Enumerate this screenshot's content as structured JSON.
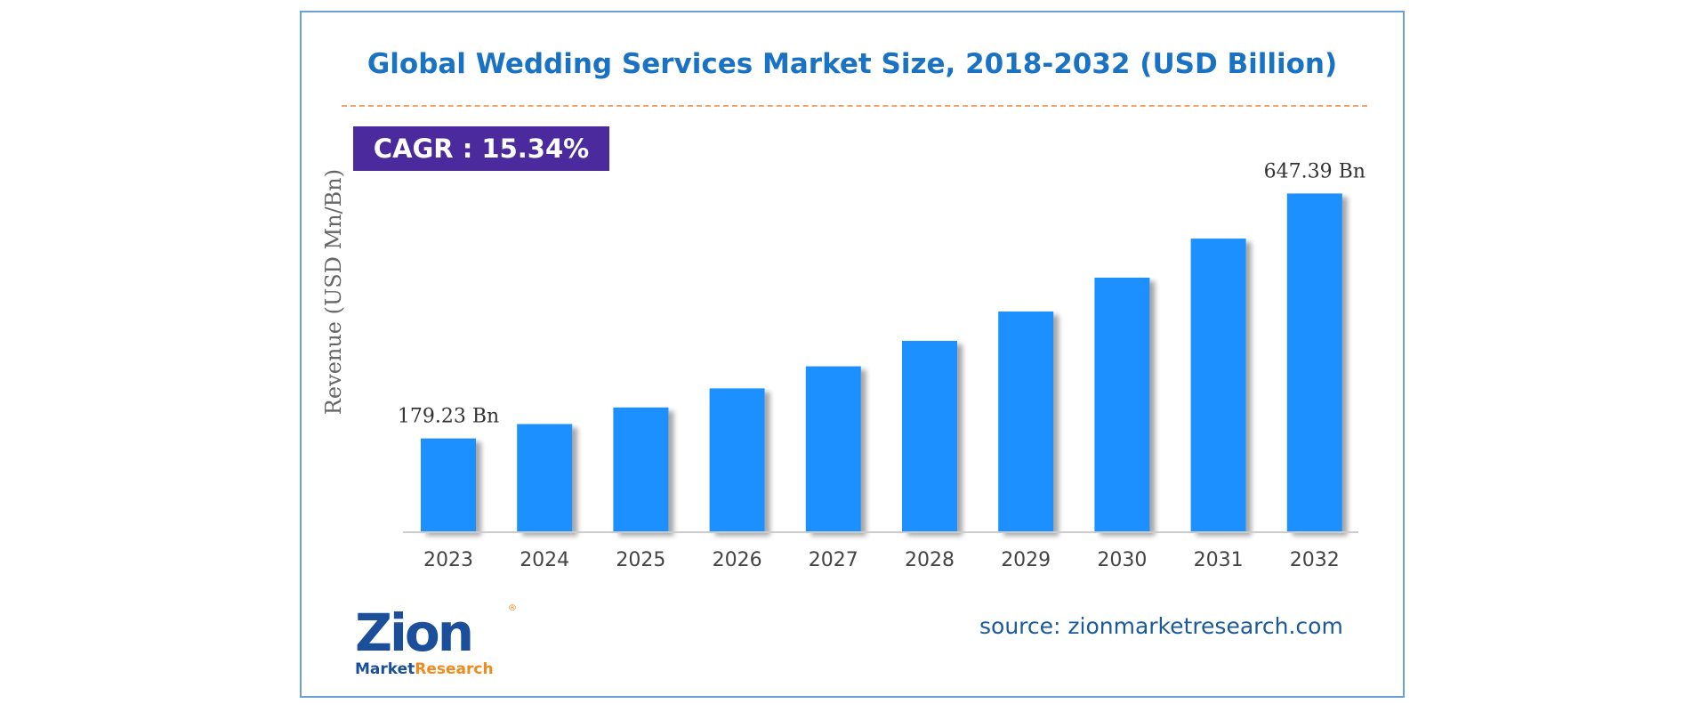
{
  "chart_data": {
    "type": "bar",
    "title": "Global Wedding Services Market Size, 2018-2032 (USD Billion)",
    "ylabel": "Revenue (USD Mn/Bn)",
    "xlabel": "",
    "categories": [
      "2023",
      "2024",
      "2025",
      "2026",
      "2027",
      "2028",
      "2029",
      "2030",
      "2031",
      "2032"
    ],
    "values": [
      179.23,
      206.7,
      238.4,
      274.9,
      317.1,
      365.7,
      421.8,
      486.5,
      561.2,
      647.39
    ],
    "data_labels": [
      {
        "category": "2023",
        "text": "179.23 Bn"
      },
      {
        "category": "2032",
        "text": "647.39 Bn"
      }
    ],
    "ylim": [
      0,
      660
    ],
    "grid": false,
    "bar_color": "#1e90ff",
    "annotation": "CAGR : 15.34%"
  },
  "footer": {
    "source": "source: zionmarketresearch.com",
    "logo_main": "Zion",
    "logo_sub_1": "Market",
    "logo_sub_2": "Research",
    "logo_reg": "®"
  },
  "colors": {
    "title": "#1a72c4",
    "cagr_bg": "#4a2a9c",
    "frame": "#6a9fd8",
    "divider": "#f2a46a"
  }
}
